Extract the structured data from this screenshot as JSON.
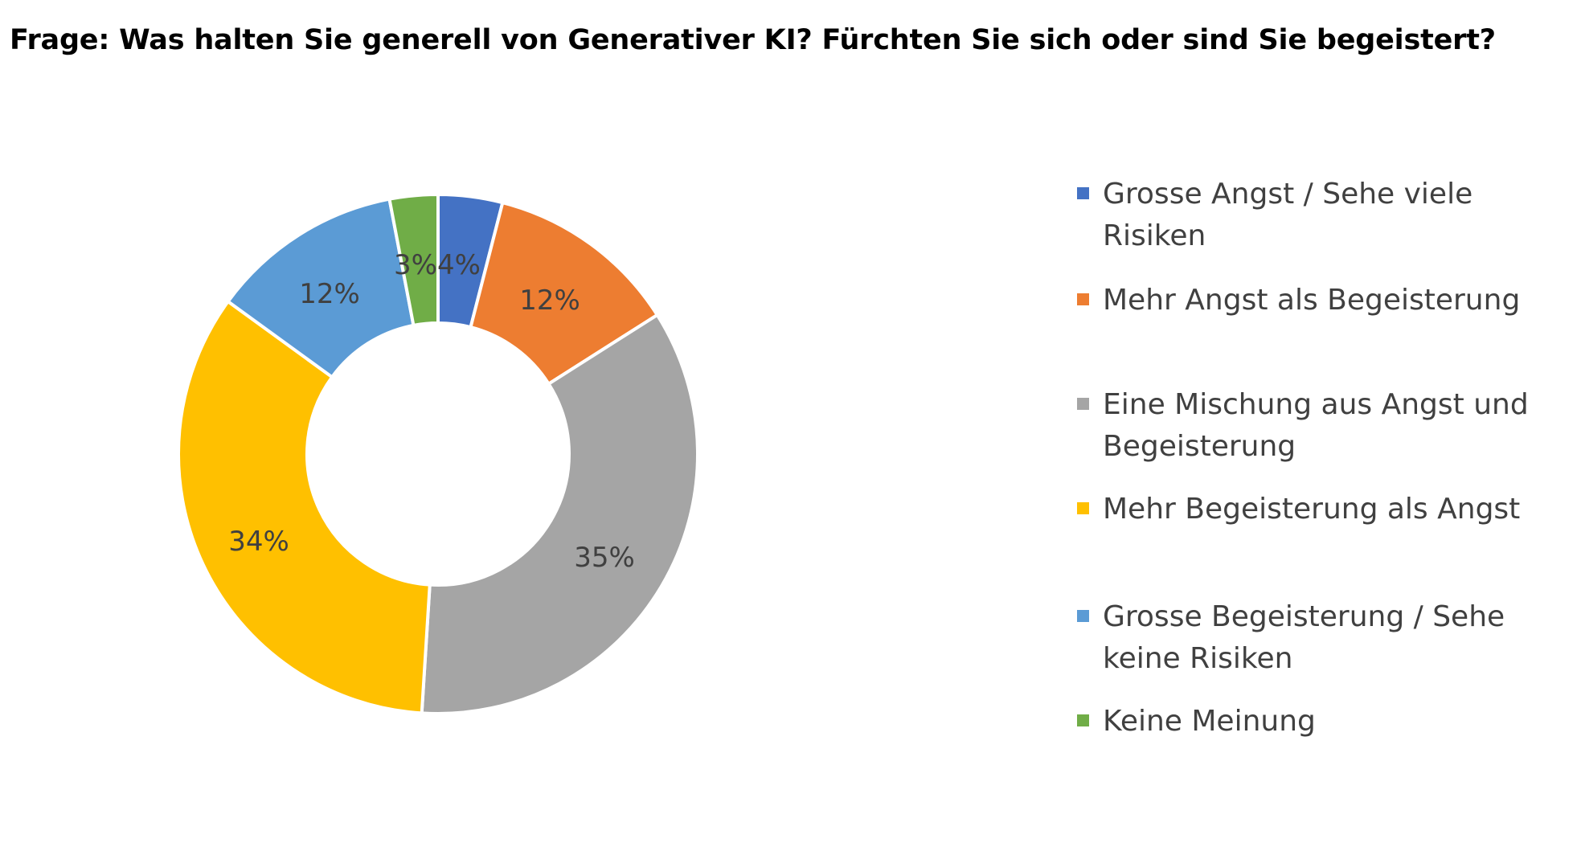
{
  "chart_data": {
    "type": "donut",
    "title": "Frage: Was halten Sie generell von Generativer KI? Fürchten Sie sich oder sind Sie begeistert?",
    "unit": "%",
    "slices": [
      {
        "label": "Grosse Angst / Sehe viele Risiken",
        "value": 4,
        "display": "4%",
        "color": "#4472C4"
      },
      {
        "label": "Mehr Angst als Begeisterung",
        "value": 12,
        "display": "12%",
        "color": "#ED7D31"
      },
      {
        "label": "Eine Mischung aus Angst und Begeisterung",
        "value": 35,
        "display": "35%",
        "color": "#A5A5A5"
      },
      {
        "label": "Mehr Begeisterung als Angst",
        "value": 34,
        "display": "34%",
        "color": "#FFC000"
      },
      {
        "label": "Grosse Begeisterung / Sehe keine Risiken",
        "value": 12,
        "display": "12%",
        "color": "#5B9BD5"
      },
      {
        "label": "Keine Meinung",
        "value": 3,
        "display": "3%",
        "color": "#70AD47"
      }
    ],
    "legend_position": "right"
  }
}
